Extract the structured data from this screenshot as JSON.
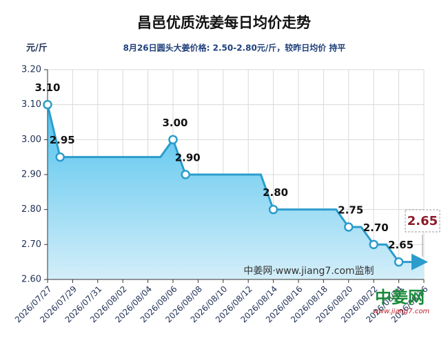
{
  "chart_data": {
    "type": "line",
    "title": "昌邑优质洗姜每日均价走势",
    "y_label": "元/斤",
    "subtitle": "8月26日圆头大姜价格: 2.50-2.80元/斤，较昨日均价 持平",
    "watermark": "中姜网·www.jiang7.com监制",
    "logo": "中姜网",
    "logo_url": "www.jiang7.com",
    "callout": "2.65",
    "categories": [
      "2026/07/27",
      null,
      "2026/07/29",
      null,
      "2026/07/31",
      null,
      "2026/08/02",
      null,
      "2026/08/04",
      null,
      "2026/08/06",
      null,
      "2026/08/08",
      null,
      "2026/08/10",
      null,
      "2026/08/12",
      null,
      "2026/08/14",
      null,
      "2026/08/16",
      null,
      "2026/08/18",
      null,
      "2026/08/20",
      null,
      "2026/08/22",
      null,
      "2026/08/24",
      null,
      "2026/08/26"
    ],
    "values": [
      3.1,
      2.95,
      2.95,
      2.95,
      2.95,
      2.95,
      2.95,
      2.95,
      2.95,
      2.95,
      3.0,
      2.9,
      2.9,
      2.9,
      2.9,
      2.9,
      2.9,
      2.9,
      2.8,
      2.8,
      2.8,
      2.8,
      2.8,
      2.8,
      2.75,
      2.75,
      2.7,
      2.7,
      2.65,
      2.65,
      2.65
    ],
    "value_labels": [
      "3.10",
      "2.95",
      null,
      null,
      null,
      null,
      null,
      null,
      null,
      null,
      "3.00",
      "2.90",
      null,
      null,
      null,
      null,
      null,
      null,
      "2.80",
      null,
      null,
      null,
      null,
      null,
      "2.75",
      null,
      "2.70",
      null,
      "2.65",
      null,
      null
    ],
    "color": "#2b9ccc",
    "ylim": [
      2.6,
      3.2
    ],
    "yticks": [
      {
        "value": 2.6,
        "label": "2.60"
      },
      {
        "value": 2.7,
        "label": "2.70"
      },
      {
        "value": 2.8,
        "label": "2.80"
      },
      {
        "value": 2.9,
        "label": "2.90"
      },
      {
        "value": 3.0,
        "label": "3.00"
      },
      {
        "value": 3.1,
        "label": "3.10"
      },
      {
        "value": 3.2,
        "label": "3.20"
      }
    ]
  }
}
